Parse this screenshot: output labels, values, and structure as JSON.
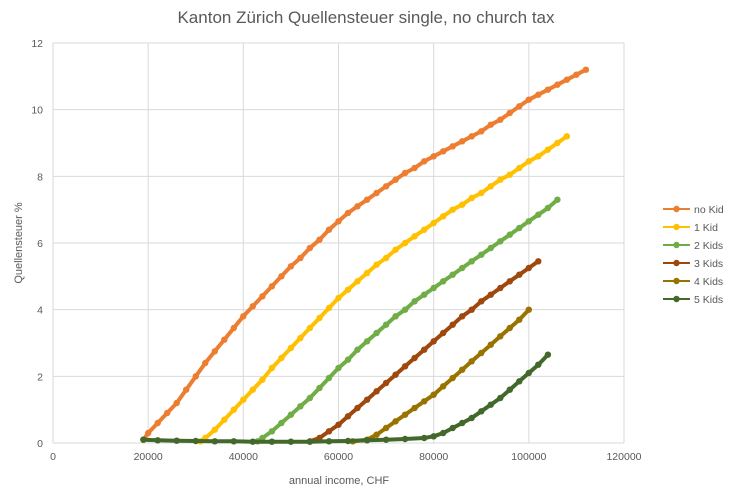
{
  "chart_data": {
    "type": "line",
    "title": "Kanton Zürich Quellensteuer single, no church tax",
    "xlabel": "annual income, CHF",
    "ylabel": "Quellensteuer %",
    "xlim": [
      0,
      120000
    ],
    "ylim": [
      0,
      12
    ],
    "x_ticks": [
      "0",
      "20000",
      "40000",
      "60000",
      "80000",
      "100000",
      "120000"
    ],
    "y_ticks": [
      "0",
      "2",
      "4",
      "6",
      "8",
      "10",
      "12"
    ],
    "grid": true,
    "legend_position": "right",
    "series": [
      {
        "name": "no Kid",
        "color": "#ed7d31",
        "points": [
          [
            19000,
            0.1
          ],
          [
            20000,
            0.3
          ],
          [
            22000,
            0.6
          ],
          [
            24000,
            0.9
          ],
          [
            26000,
            1.2
          ],
          [
            28000,
            1.6
          ],
          [
            30000,
            2.0
          ],
          [
            32000,
            2.4
          ],
          [
            34000,
            2.75
          ],
          [
            36000,
            3.1
          ],
          [
            38000,
            3.45
          ],
          [
            40000,
            3.8
          ],
          [
            42000,
            4.1
          ],
          [
            44000,
            4.4
          ],
          [
            46000,
            4.7
          ],
          [
            48000,
            5.0
          ],
          [
            50000,
            5.3
          ],
          [
            52000,
            5.55
          ],
          [
            54000,
            5.85
          ],
          [
            56000,
            6.1
          ],
          [
            58000,
            6.4
          ],
          [
            60000,
            6.65
          ],
          [
            62000,
            6.9
          ],
          [
            64000,
            7.1
          ],
          [
            66000,
            7.3
          ],
          [
            68000,
            7.5
          ],
          [
            70000,
            7.7
          ],
          [
            72000,
            7.9
          ],
          [
            74000,
            8.1
          ],
          [
            76000,
            8.25
          ],
          [
            78000,
            8.45
          ],
          [
            80000,
            8.6
          ],
          [
            82000,
            8.75
          ],
          [
            84000,
            8.9
          ],
          [
            86000,
            9.05
          ],
          [
            88000,
            9.2
          ],
          [
            90000,
            9.35
          ],
          [
            92000,
            9.55
          ],
          [
            94000,
            9.7
          ],
          [
            96000,
            9.9
          ],
          [
            98000,
            10.1
          ],
          [
            100000,
            10.3
          ],
          [
            102000,
            10.45
          ],
          [
            104000,
            10.6
          ],
          [
            106000,
            10.75
          ],
          [
            108000,
            10.9
          ],
          [
            110000,
            11.05
          ],
          [
            112000,
            11.2
          ]
        ]
      },
      {
        "name": "1 Kid",
        "color": "#ffc000",
        "points": [
          [
            31000,
            0.05
          ],
          [
            32000,
            0.15
          ],
          [
            34000,
            0.4
          ],
          [
            36000,
            0.7
          ],
          [
            38000,
            1.0
          ],
          [
            40000,
            1.3
          ],
          [
            42000,
            1.6
          ],
          [
            44000,
            1.9
          ],
          [
            46000,
            2.25
          ],
          [
            48000,
            2.55
          ],
          [
            50000,
            2.85
          ],
          [
            52000,
            3.15
          ],
          [
            54000,
            3.45
          ],
          [
            56000,
            3.75
          ],
          [
            58000,
            4.05
          ],
          [
            60000,
            4.35
          ],
          [
            62000,
            4.6
          ],
          [
            64000,
            4.85
          ],
          [
            66000,
            5.1
          ],
          [
            68000,
            5.35
          ],
          [
            70000,
            5.55
          ],
          [
            72000,
            5.8
          ],
          [
            74000,
            6.0
          ],
          [
            76000,
            6.2
          ],
          [
            78000,
            6.4
          ],
          [
            80000,
            6.6
          ],
          [
            82000,
            6.8
          ],
          [
            84000,
            7.0
          ],
          [
            86000,
            7.15
          ],
          [
            88000,
            7.35
          ],
          [
            90000,
            7.5
          ],
          [
            92000,
            7.7
          ],
          [
            94000,
            7.9
          ],
          [
            96000,
            8.05
          ],
          [
            98000,
            8.25
          ],
          [
            100000,
            8.45
          ],
          [
            102000,
            8.6
          ],
          [
            104000,
            8.8
          ],
          [
            106000,
            9.0
          ],
          [
            108000,
            9.2
          ]
        ]
      },
      {
        "name": "2 Kids",
        "color": "#70ad47",
        "points": [
          [
            43000,
            0.05
          ],
          [
            44000,
            0.15
          ],
          [
            46000,
            0.35
          ],
          [
            48000,
            0.6
          ],
          [
            50000,
            0.85
          ],
          [
            52000,
            1.1
          ],
          [
            54000,
            1.35
          ],
          [
            56000,
            1.65
          ],
          [
            58000,
            1.95
          ],
          [
            60000,
            2.25
          ],
          [
            62000,
            2.5
          ],
          [
            64000,
            2.8
          ],
          [
            66000,
            3.05
          ],
          [
            68000,
            3.3
          ],
          [
            70000,
            3.55
          ],
          [
            72000,
            3.8
          ],
          [
            74000,
            4.0
          ],
          [
            76000,
            4.25
          ],
          [
            78000,
            4.45
          ],
          [
            80000,
            4.65
          ],
          [
            82000,
            4.85
          ],
          [
            84000,
            5.05
          ],
          [
            86000,
            5.25
          ],
          [
            88000,
            5.45
          ],
          [
            90000,
            5.65
          ],
          [
            92000,
            5.85
          ],
          [
            94000,
            6.05
          ],
          [
            96000,
            6.25
          ],
          [
            98000,
            6.45
          ],
          [
            100000,
            6.65
          ],
          [
            102000,
            6.85
          ],
          [
            104000,
            7.05
          ],
          [
            106000,
            7.3
          ]
        ]
      },
      {
        "name": "3 Kids",
        "color": "#9e480e",
        "points": [
          [
            54000,
            0.05
          ],
          [
            56000,
            0.15
          ],
          [
            58000,
            0.35
          ],
          [
            60000,
            0.55
          ],
          [
            62000,
            0.8
          ],
          [
            64000,
            1.05
          ],
          [
            66000,
            1.3
          ],
          [
            68000,
            1.55
          ],
          [
            70000,
            1.8
          ],
          [
            72000,
            2.05
          ],
          [
            74000,
            2.3
          ],
          [
            76000,
            2.55
          ],
          [
            78000,
            2.8
          ],
          [
            80000,
            3.05
          ],
          [
            82000,
            3.3
          ],
          [
            84000,
            3.55
          ],
          [
            86000,
            3.8
          ],
          [
            88000,
            4.0
          ],
          [
            90000,
            4.25
          ],
          [
            92000,
            4.45
          ],
          [
            94000,
            4.65
          ],
          [
            96000,
            4.85
          ],
          [
            98000,
            5.05
          ],
          [
            100000,
            5.25
          ],
          [
            102000,
            5.45
          ]
        ]
      },
      {
        "name": "4 Kids",
        "color": "#997300",
        "points": [
          [
            63000,
            0.05
          ],
          [
            66000,
            0.1
          ],
          [
            68000,
            0.25
          ],
          [
            70000,
            0.45
          ],
          [
            72000,
            0.65
          ],
          [
            74000,
            0.85
          ],
          [
            76000,
            1.05
          ],
          [
            78000,
            1.25
          ],
          [
            80000,
            1.45
          ],
          [
            82000,
            1.7
          ],
          [
            84000,
            1.95
          ],
          [
            86000,
            2.2
          ],
          [
            88000,
            2.45
          ],
          [
            90000,
            2.7
          ],
          [
            92000,
            2.95
          ],
          [
            94000,
            3.2
          ],
          [
            96000,
            3.45
          ],
          [
            98000,
            3.7
          ],
          [
            100000,
            4.0
          ]
        ]
      },
      {
        "name": "5 Kids",
        "color": "#43682b",
        "points": [
          [
            19000,
            0.1
          ],
          [
            22000,
            0.08
          ],
          [
            26000,
            0.07
          ],
          [
            30000,
            0.06
          ],
          [
            34000,
            0.05
          ],
          [
            38000,
            0.05
          ],
          [
            42000,
            0.04
          ],
          [
            46000,
            0.04
          ],
          [
            50000,
            0.04
          ],
          [
            54000,
            0.04
          ],
          [
            58000,
            0.05
          ],
          [
            62000,
            0.06
          ],
          [
            66000,
            0.08
          ],
          [
            70000,
            0.1
          ],
          [
            74000,
            0.12
          ],
          [
            78000,
            0.15
          ],
          [
            80000,
            0.2
          ],
          [
            82000,
            0.3
          ],
          [
            84000,
            0.45
          ],
          [
            86000,
            0.6
          ],
          [
            88000,
            0.75
          ],
          [
            90000,
            0.95
          ],
          [
            92000,
            1.15
          ],
          [
            94000,
            1.35
          ],
          [
            96000,
            1.6
          ],
          [
            98000,
            1.85
          ],
          [
            100000,
            2.1
          ],
          [
            102000,
            2.35
          ],
          [
            104000,
            2.65
          ]
        ]
      }
    ]
  }
}
